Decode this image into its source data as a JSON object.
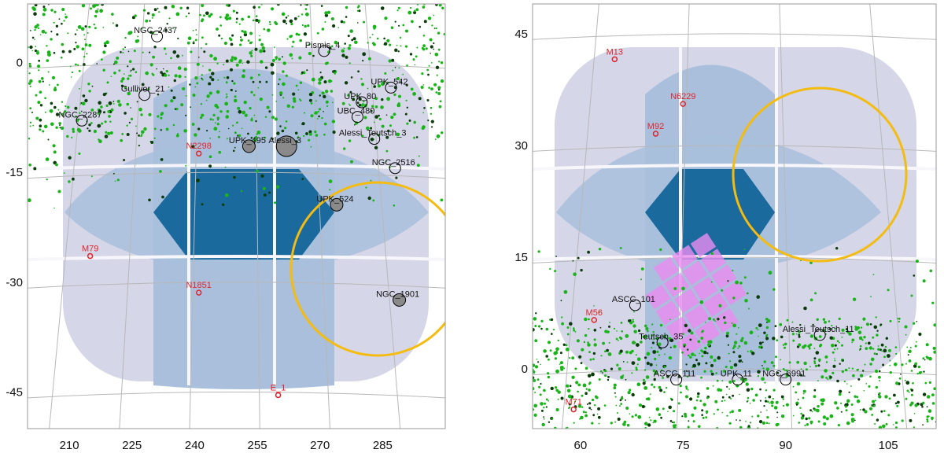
{
  "colors": {
    "background": "#ffffff",
    "frame": "#9a9a9a",
    "graticule": "#b8b8b8",
    "footprint_light": "#d5d6e7",
    "footprint_mid": "#a9bfdc",
    "footprint_mid2": "#6aa4cd",
    "footprint_dark": "#1a6a9e",
    "seam": "#f7f7fb",
    "cluster_members": "#18b418",
    "cluster_circle": "#000000",
    "cluster_fill": "#8a8a8a",
    "globular_red": "#e0242c",
    "region_yellow": "#f4bb11",
    "pink_mosaic": "#ea8cf0"
  },
  "chart_data": [
    {
      "type": "scatter",
      "projection": "sky map",
      "xlim": [
        200,
        300
      ],
      "ylim": [
        -50,
        8
      ],
      "x_ticks": [
        "210",
        "225",
        "240",
        "255",
        "270",
        "285"
      ],
      "y_ticks": [
        "0",
        "-15",
        "-30",
        "-45"
      ],
      "x_tick_values": [
        210,
        225,
        240,
        255,
        270,
        285
      ],
      "y_tick_values": [
        0,
        -15,
        -30,
        -45
      ],
      "labelled_clusters": [
        {
          "name": "NGC_2437",
          "x": 231,
          "y": 4
        },
        {
          "name": "Pismis_4",
          "x": 271,
          "y": 2
        },
        {
          "name": "Gulliver_21",
          "x": 228,
          "y": -4
        },
        {
          "name": "UPK_542",
          "x": 287,
          "y": -3
        },
        {
          "name": "UPK_80",
          "x": 280,
          "y": -5
        },
        {
          "name": "NGC_2287",
          "x": 213,
          "y": -7.5
        },
        {
          "name": "UBC_480",
          "x": 279,
          "y": -7
        },
        {
          "name": "Alessi_Teutsch_3",
          "x": 283,
          "y": -10
        },
        {
          "name": "UPK_495",
          "x": 253,
          "y": -11
        },
        {
          "name": "Alessi_3",
          "x": 262,
          "y": -11
        },
        {
          "name": "NGC_2516",
          "x": 288,
          "y": -14
        },
        {
          "name": "UPK_524",
          "x": 274,
          "y": -19
        },
        {
          "name": "NGC_1901",
          "x": 289,
          "y": -32
        }
      ],
      "globular_clusters": [
        {
          "name": "N2298",
          "x": 241,
          "y": -12
        },
        {
          "name": "M79",
          "x": 215,
          "y": -26
        },
        {
          "name": "N1851",
          "x": 241,
          "y": -31
        },
        {
          "name": "E_1",
          "x": 260,
          "y": -45
        }
      ],
      "highlighted_region": {
        "center_x": 287,
        "center_y": -28,
        "color": "yellow circle"
      }
    },
    {
      "type": "scatter",
      "projection": "sky map",
      "xlim": [
        53,
        112
      ],
      "ylim": [
        -8,
        49
      ],
      "x_ticks": [
        "60",
        "75",
        "90",
        "105"
      ],
      "y_ticks": [
        "45",
        "30",
        "15",
        "0"
      ],
      "x_tick_values": [
        60,
        75,
        90,
        105
      ],
      "y_tick_values": [
        45,
        30,
        15,
        0
      ],
      "labelled_clusters": [
        {
          "name": "ASCC_101",
          "x": 68,
          "y": 9
        },
        {
          "name": "Alessi_Teutsch_11",
          "x": 95,
          "y": 5
        },
        {
          "name": "Teutsch_35",
          "x": 72,
          "y": 4
        },
        {
          "name": "ASCC_111",
          "x": 74,
          "y": -1
        },
        {
          "name": "UPK_11",
          "x": 83,
          "y": -1
        },
        {
          "name": "NGC_6991",
          "x": 90,
          "y": -1
        }
      ],
      "globular_clusters": [
        {
          "name": "M13",
          "x": 65,
          "y": 42
        },
        {
          "name": "N6229",
          "x": 75,
          "y": 36
        },
        {
          "name": "M92",
          "x": 71,
          "y": 32
        },
        {
          "name": "M56",
          "x": 62,
          "y": 7
        },
        {
          "name": "M71",
          "x": 59,
          "y": -5
        }
      ],
      "highlighted_region": {
        "center_x": 95,
        "center_y": 26,
        "color": "yellow circle"
      }
    }
  ]
}
